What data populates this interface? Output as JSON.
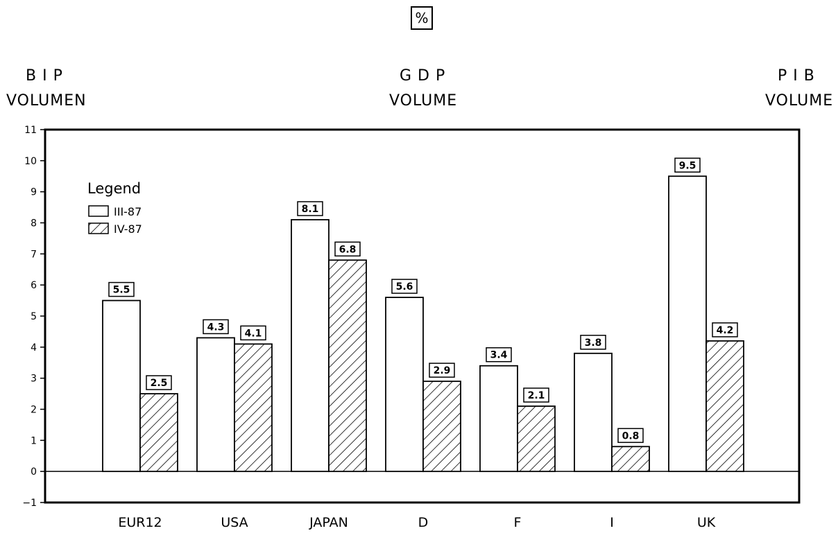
{
  "unit_label": "%",
  "headers": {
    "left": {
      "line1": "B I P",
      "line2": "VOLUMEN"
    },
    "center": {
      "line1": "G D P",
      "line2": "VOLUME"
    },
    "right": {
      "line1": "P I B",
      "line2": "VOLUME"
    }
  },
  "chart_data": {
    "type": "bar",
    "categories": [
      "EUR12",
      "USA",
      "JAPAN",
      "D",
      "F",
      "I",
      "UK"
    ],
    "series": [
      {
        "name": "III-87",
        "values": [
          5.5,
          4.3,
          8.1,
          5.6,
          3.4,
          3.8,
          9.5
        ],
        "fill": "open"
      },
      {
        "name": "IV-87",
        "values": [
          2.5,
          4.1,
          6.8,
          2.9,
          2.1,
          0.8,
          4.2
        ],
        "fill": "hatched"
      }
    ],
    "data_labels": [
      [
        "5.5",
        "4.3",
        "8.1",
        "5.6",
        "3.4",
        "3.8",
        "9.5"
      ],
      [
        "2.5",
        "4.1",
        "6.8",
        "2.9",
        "2.1",
        "0.8",
        "4.2"
      ]
    ],
    "ylim": [
      -1,
      11
    ],
    "yticks": [
      -1,
      0,
      1,
      2,
      3,
      4,
      5,
      6,
      7,
      8,
      9,
      10,
      11
    ],
    "ytick_labels": [
      "−1",
      "0",
      "1",
      "2",
      "3",
      "4",
      "5",
      "6",
      "7",
      "8",
      "9",
      "10",
      "11"
    ],
    "legend": {
      "title": "Legend",
      "position": "top-left"
    },
    "grid": false,
    "colors": {
      "stroke": "#000000",
      "background": "#ffffff"
    }
  }
}
